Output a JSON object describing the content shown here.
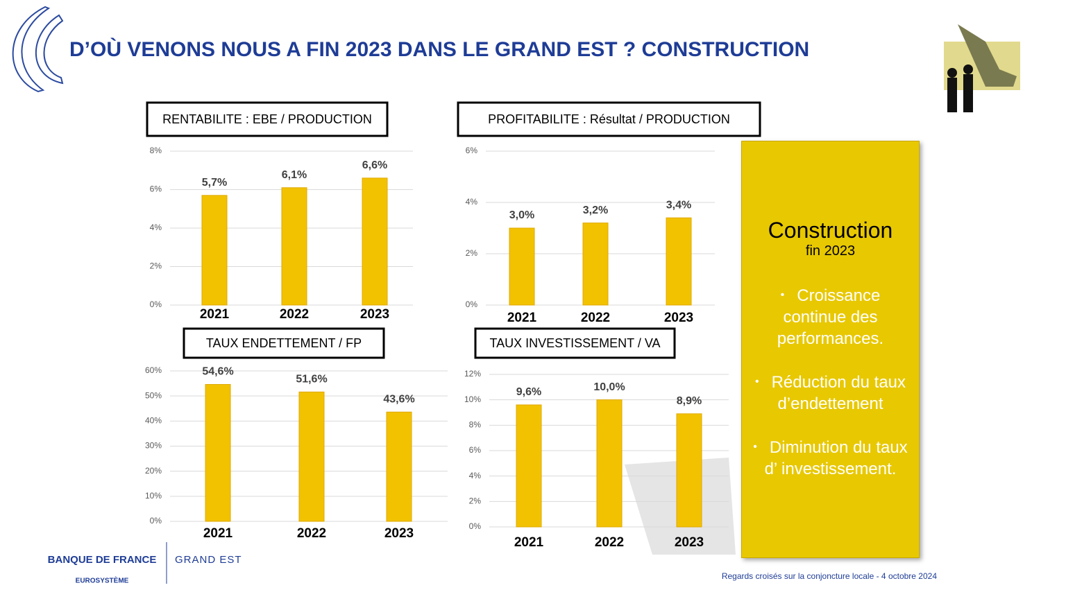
{
  "header": {
    "title": "D’OÙ VENONS NOUS A FIN 2023 DANS LE GRAND EST ? CONSTRUCTION"
  },
  "chart_data": [
    {
      "type": "bar",
      "title": "RENTABILITE : EBE / PRODUCTION",
      "categories": [
        "2021",
        "2022",
        "2023"
      ],
      "values": [
        5.7,
        6.1,
        6.6
      ],
      "value_labels": [
        "5,7%",
        "6,1%",
        "6,6%"
      ],
      "color": "#f2c200",
      "ylim": [
        0,
        8
      ],
      "yticks": [
        {
          "value": 0,
          "label": "0%"
        },
        {
          "value": 2,
          "label": "2%"
        },
        {
          "value": 4,
          "label": "4%"
        },
        {
          "value": 6,
          "label": "6%"
        },
        {
          "value": 8,
          "label": "8%"
        }
      ],
      "grid": true
    },
    {
      "type": "bar",
      "title": "PROFITABILITE : Résultat / PRODUCTION",
      "categories": [
        "2021",
        "2022",
        "2023"
      ],
      "values": [
        3.0,
        3.2,
        3.4
      ],
      "value_labels": [
        "3,0%",
        "3,2%",
        "3,4%"
      ],
      "color": "#f2c200",
      "ylim": [
        0,
        6
      ],
      "yticks": [
        {
          "value": 0,
          "label": "0%"
        },
        {
          "value": 2,
          "label": "2%"
        },
        {
          "value": 4,
          "label": "4%"
        },
        {
          "value": 6,
          "label": "6%"
        }
      ],
      "grid": true
    },
    {
      "type": "bar",
      "title": "TAUX ENDETTEMENT / FP",
      "categories": [
        "2021",
        "2022",
        "2023"
      ],
      "values": [
        54.6,
        51.6,
        43.6
      ],
      "value_labels": [
        "54,6%",
        "51,6%",
        "43,6%"
      ],
      "color": "#f2c200",
      "ylim": [
        0,
        60
      ],
      "yticks": [
        {
          "value": 0,
          "label": "0%"
        },
        {
          "value": 10,
          "label": "10%"
        },
        {
          "value": 20,
          "label": "20%"
        },
        {
          "value": 30,
          "label": "30%"
        },
        {
          "value": 40,
          "label": "40%"
        },
        {
          "value": 50,
          "label": "50%"
        },
        {
          "value": 60,
          "label": "60%"
        }
      ],
      "grid": true
    },
    {
      "type": "bar",
      "title": "TAUX INVESTISSEMENT / VA",
      "categories": [
        "2021",
        "2022",
        "2023"
      ],
      "values": [
        9.6,
        10.0,
        8.9
      ],
      "value_labels": [
        "9,6%",
        "10,0%",
        "8,9%"
      ],
      "color": "#f2c200",
      "ylim": [
        0,
        12
      ],
      "yticks": [
        {
          "value": 0,
          "label": "0%"
        },
        {
          "value": 2,
          "label": "2%"
        },
        {
          "value": 4,
          "label": "4%"
        },
        {
          "value": 6,
          "label": "6%"
        },
        {
          "value": 8,
          "label": "8%"
        },
        {
          "value": 10,
          "label": "10%"
        },
        {
          "value": 12,
          "label": "12%"
        }
      ],
      "grid": true
    }
  ],
  "sidebar": {
    "title": "Construction",
    "subtitle": "fin 2023",
    "bullets": [
      "Croissance continue des performances.",
      "Réduction du taux d’endettement",
      "Diminution du taux d’ investissement."
    ]
  },
  "footer": {
    "logo": "BANQUE DE FRANCE",
    "logo_sub": "EUROSYSTÈME",
    "region": "GRAND EST",
    "note": "Regards croisés sur la conjoncture locale - 4 octobre 2024"
  }
}
